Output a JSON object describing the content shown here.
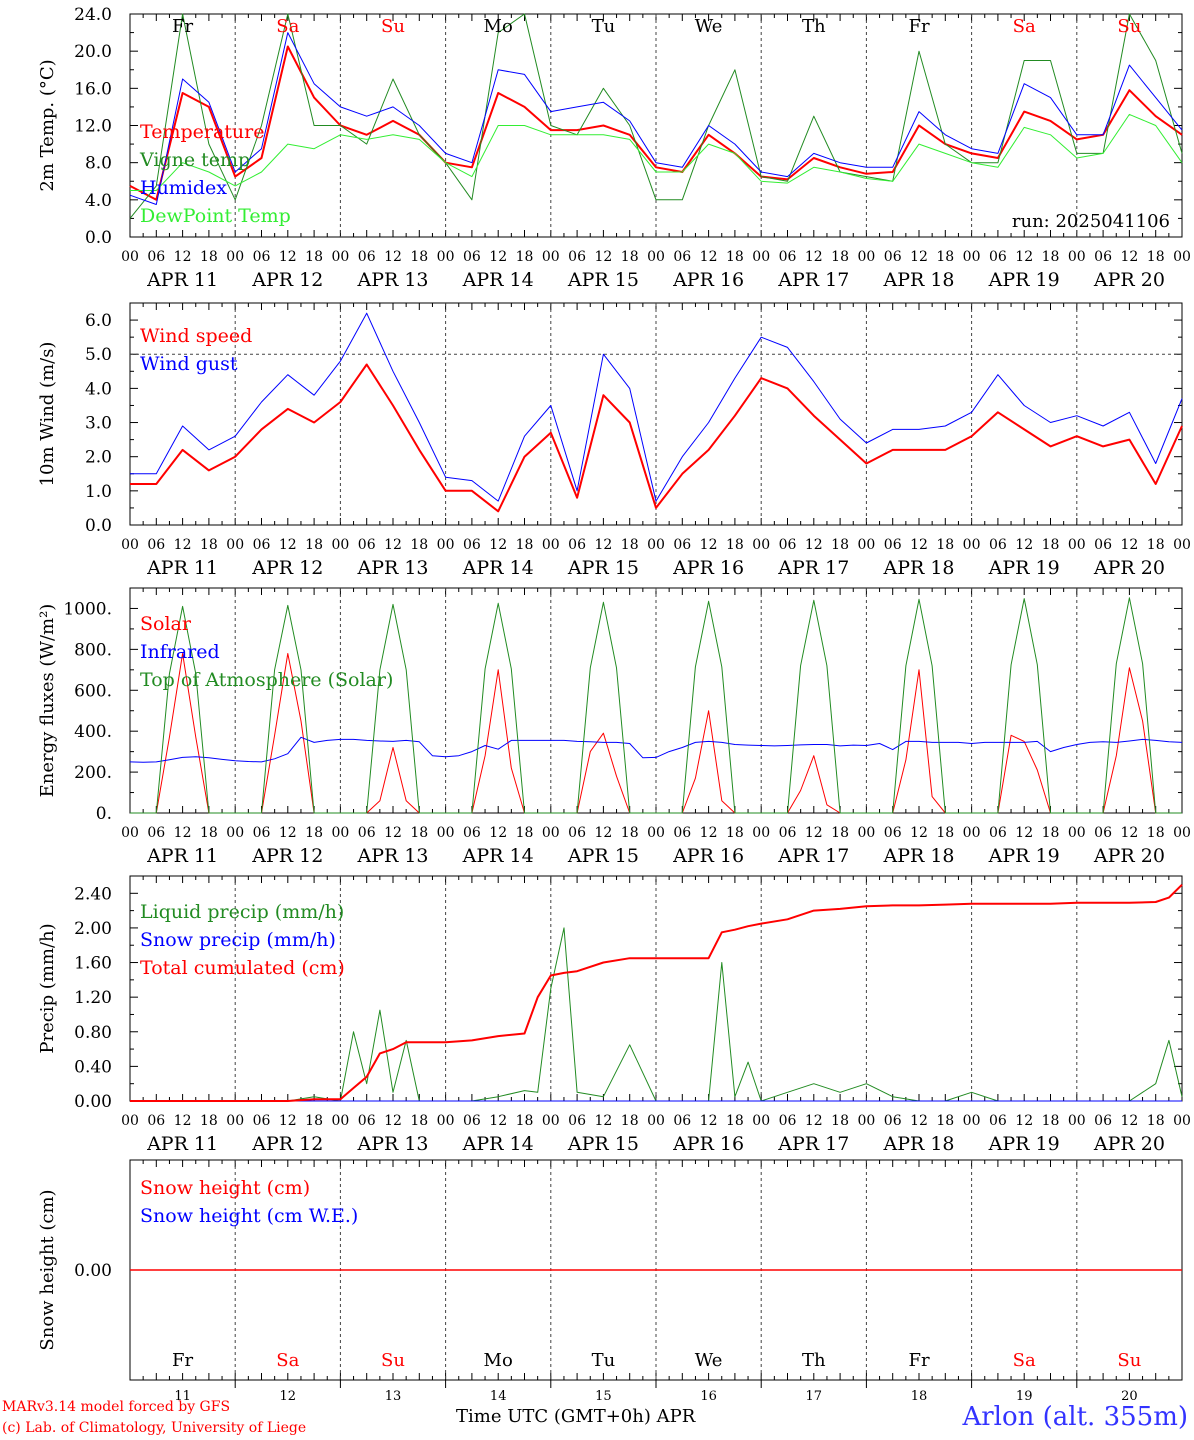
{
  "colors": {
    "red": "#ff0000",
    "dark_green": "#228b22",
    "blue": "#0000ff",
    "light_green": "#33ee33",
    "axis": "#000000",
    "weekend": "#ff0000",
    "location": "#3333ff"
  },
  "x_axis": {
    "hour_labels": [
      "00",
      "06",
      "12",
      "18"
    ],
    "date_labels": [
      "APR 11",
      "APR 12",
      "APR 13",
      "APR 14",
      "APR 15",
      "APR 16",
      "APR 17",
      "APR 18",
      "APR 19",
      "APR 20"
    ],
    "days": [
      {
        "abbr": "Fr",
        "num": "11",
        "weekend": false
      },
      {
        "abbr": "Sa",
        "num": "12",
        "weekend": true
      },
      {
        "abbr": "Su",
        "num": "13",
        "weekend": true
      },
      {
        "abbr": "Mo",
        "num": "14",
        "weekend": false
      },
      {
        "abbr": "Tu",
        "num": "15",
        "weekend": false
      },
      {
        "abbr": "We",
        "num": "16",
        "weekend": false
      },
      {
        "abbr": "Th",
        "num": "17",
        "weekend": false
      },
      {
        "abbr": "Fr",
        "num": "18",
        "weekend": false
      },
      {
        "abbr": "Sa",
        "num": "19",
        "weekend": true
      },
      {
        "abbr": "Su",
        "num": "20",
        "weekend": true
      }
    ],
    "range_hours": [
      0,
      240
    ]
  },
  "footer": {
    "model": "MARv3.14 model forced by GFS",
    "credit": "(c) Lab. of Climatology, University of Liege",
    "time_label": "Time UTC (GMT+0h) APR",
    "location": "Arlon (alt. 355m)"
  },
  "chart_data": [
    {
      "type": "line",
      "ylabel": "2m Temp. (°C)",
      "ylim": [
        0,
        24
      ],
      "yticks": [
        0,
        4,
        8,
        12,
        16,
        20,
        24
      ],
      "ytick_labels": [
        "0.0",
        "4.0",
        "8.0",
        "12.0",
        "16.0",
        "20.0",
        "24.0"
      ],
      "run_label": "run: 2025041106",
      "show_day_names": true,
      "x_hours": [
        0,
        6,
        12,
        18,
        24,
        30,
        36,
        42,
        48,
        54,
        60,
        66,
        72,
        78,
        84,
        90,
        96,
        102,
        108,
        114,
        120,
        126,
        132,
        138,
        144,
        150,
        156,
        162,
        168,
        174,
        180,
        186,
        192,
        198,
        204,
        210,
        216,
        222,
        228,
        234,
        240
      ],
      "series": [
        {
          "name": "Temperature",
          "color": "red",
          "width": 2,
          "values": [
            5.5,
            4,
            15.5,
            14,
            6.5,
            8.5,
            20.5,
            15,
            12,
            11,
            12.5,
            11,
            8,
            7.5,
            15.5,
            14,
            11.5,
            11.5,
            12,
            11,
            7.5,
            7,
            11,
            9,
            6.5,
            6.2,
            8.5,
            7.5,
            6.8,
            7,
            12,
            10,
            9,
            8.5,
            13.5,
            12.5,
            10.5,
            11,
            15.8,
            13,
            11
          ]
        },
        {
          "name": "Vigne temp",
          "color": "dark_green",
          "width": 1,
          "values": [
            2,
            5.5,
            24,
            10,
            4,
            12,
            24,
            12,
            12,
            10,
            17,
            11,
            8,
            4,
            22,
            24,
            12,
            11,
            16,
            12,
            4,
            4,
            12,
            18,
            6.5,
            6,
            13,
            7,
            6.5,
            6,
            20,
            10,
            8,
            8,
            19,
            19,
            9,
            9,
            24,
            19,
            9
          ]
        },
        {
          "name": "Humidex",
          "color": "blue",
          "width": 1,
          "values": [
            4.5,
            3.5,
            17,
            14.5,
            7,
            9.5,
            22,
            16.5,
            14,
            13,
            14,
            12,
            9,
            8,
            18,
            17.5,
            13.5,
            14,
            14.5,
            12.5,
            8,
            7.5,
            12,
            10,
            7,
            6.5,
            9,
            8,
            7.5,
            7.5,
            13.5,
            11,
            9.5,
            9,
            16.5,
            15,
            11,
            11,
            18.5,
            15,
            11.5
          ]
        },
        {
          "name": "DewPoint Temp",
          "color": "light_green",
          "width": 1,
          "values": [
            5,
            5,
            8,
            7,
            5.5,
            7,
            10,
            9.5,
            11,
            10.5,
            11,
            10.5,
            8,
            6.5,
            12,
            12,
            11,
            11,
            11,
            10.5,
            7,
            7,
            10,
            9,
            6,
            5.8,
            7.5,
            7,
            6.3,
            6,
            10,
            9,
            8,
            7.5,
            11.8,
            11,
            8.5,
            9,
            13.2,
            12,
            8
          ]
        }
      ]
    },
    {
      "type": "line",
      "ylabel": "10m Wind (m/s)",
      "ylim": [
        0,
        6.5
      ],
      "yticks": [
        0,
        1,
        2,
        3,
        4,
        5,
        6
      ],
      "ytick_labels": [
        "0.0",
        "1.0",
        "2.0",
        "3.0",
        "4.0",
        "5.0",
        "6.0"
      ],
      "ref_line": 5,
      "x_hours": [
        0,
        6,
        12,
        18,
        24,
        30,
        36,
        42,
        48,
        54,
        60,
        66,
        72,
        78,
        84,
        90,
        96,
        102,
        108,
        114,
        120,
        126,
        132,
        138,
        144,
        150,
        156,
        162,
        168,
        174,
        180,
        186,
        192,
        198,
        204,
        210,
        216,
        222,
        228,
        234,
        240
      ],
      "series": [
        {
          "name": "Wind speed",
          "color": "red",
          "width": 2,
          "values": [
            1.2,
            1.2,
            2.2,
            1.6,
            2.0,
            2.8,
            3.4,
            3.0,
            3.6,
            4.7,
            3.5,
            2.2,
            1.0,
            1.0,
            0.4,
            2.0,
            2.7,
            0.8,
            3.8,
            3.0,
            0.5,
            1.5,
            2.2,
            3.2,
            4.3,
            4.0,
            3.2,
            2.5,
            1.8,
            2.2,
            2.2,
            2.2,
            2.6,
            3.3,
            2.8,
            2.3,
            2.6,
            2.3,
            2.5,
            1.2,
            2.9
          ]
        },
        {
          "name": "Wind gust",
          "color": "blue",
          "width": 1,
          "values": [
            1.5,
            1.5,
            2.9,
            2.2,
            2.6,
            3.6,
            4.4,
            3.8,
            4.8,
            6.2,
            4.5,
            3.0,
            1.4,
            1.3,
            0.7,
            2.6,
            3.5,
            1.0,
            5.0,
            4.0,
            0.7,
            2.0,
            3.0,
            4.3,
            5.5,
            5.2,
            4.2,
            3.1,
            2.4,
            2.8,
            2.8,
            2.9,
            3.3,
            4.4,
            3.5,
            3.0,
            3.2,
            2.9,
            3.3,
            1.8,
            3.7
          ]
        }
      ]
    },
    {
      "type": "line",
      "ylabel": "Energy fluxes (W/m²)",
      "ylim": [
        0,
        1100
      ],
      "yticks": [
        0,
        200,
        400,
        600,
        800,
        1000
      ],
      "ytick_labels": [
        "0.",
        "200.",
        "400.",
        "600.",
        "800.",
        "1000."
      ],
      "x_hours": [
        0,
        3,
        6,
        9,
        12,
        15,
        18,
        21,
        24,
        27,
        30,
        33,
        36,
        39,
        42,
        45,
        48,
        51,
        54,
        57,
        60,
        63,
        66,
        69,
        72,
        75,
        78,
        81,
        84,
        87,
        90,
        93,
        96,
        99,
        102,
        105,
        108,
        111,
        114,
        117,
        120,
        123,
        126,
        129,
        132,
        135,
        138,
        141,
        144,
        147,
        150,
        153,
        156,
        159,
        162,
        165,
        168,
        171,
        174,
        177,
        180,
        183,
        186,
        189,
        192,
        195,
        198,
        201,
        204,
        207,
        210,
        213,
        216,
        219,
        222,
        225,
        228,
        231,
        234,
        237,
        240
      ],
      "series": [
        {
          "name": "Solar",
          "color": "red",
          "width": 1,
          "values": [
            0,
            0,
            0,
            370,
            780,
            370,
            0,
            0,
            0,
            0,
            0,
            380,
            780,
            450,
            0,
            0,
            0,
            0,
            0,
            60,
            320,
            60,
            0,
            0,
            0,
            0,
            0,
            280,
            700,
            220,
            0,
            0,
            0,
            0,
            0,
            300,
            390,
            180,
            0,
            0,
            0,
            0,
            0,
            170,
            500,
            60,
            0,
            0,
            0,
            0,
            0,
            110,
            280,
            40,
            0,
            0,
            0,
            0,
            0,
            260,
            700,
            80,
            0,
            0,
            0,
            0,
            0,
            380,
            350,
            210,
            0,
            0,
            0,
            0,
            0,
            280,
            710,
            450,
            0,
            0,
            0
          ]
        },
        {
          "name": "Infrared",
          "color": "blue",
          "width": 1,
          "values": [
            250,
            248,
            250,
            260,
            272,
            275,
            270,
            262,
            255,
            252,
            250,
            265,
            290,
            370,
            345,
            355,
            360,
            360,
            355,
            352,
            350,
            355,
            348,
            280,
            275,
            280,
            300,
            330,
            312,
            355,
            355,
            355,
            355,
            355,
            350,
            348,
            345,
            345,
            340,
            270,
            272,
            300,
            320,
            345,
            350,
            345,
            335,
            332,
            330,
            328,
            330,
            333,
            335,
            335,
            328,
            332,
            330,
            340,
            310,
            350,
            350,
            345,
            345,
            345,
            340,
            345,
            345,
            345,
            345,
            350,
            300,
            320,
            335,
            345,
            348,
            345,
            352,
            360,
            355,
            348,
            345
          ]
        },
        {
          "name": "Top of Atmosphere (Solar)",
          "color": "dark_green",
          "width": 1,
          "values": [
            0,
            0,
            0,
            680,
            1010,
            680,
            0,
            0,
            0,
            0,
            0,
            700,
            1015,
            700,
            0,
            0,
            0,
            0,
            0,
            700,
            1020,
            700,
            0,
            0,
            0,
            0,
            0,
            705,
            1025,
            705,
            0,
            0,
            0,
            0,
            0,
            710,
            1030,
            710,
            0,
            0,
            0,
            0,
            0,
            715,
            1035,
            715,
            0,
            0,
            0,
            0,
            0,
            720,
            1040,
            720,
            0,
            0,
            0,
            0,
            0,
            720,
            1045,
            720,
            0,
            0,
            0,
            0,
            0,
            725,
            1048,
            725,
            0,
            0,
            0,
            0,
            0,
            730,
            1052,
            730,
            0,
            0,
            0
          ]
        }
      ]
    },
    {
      "type": "line",
      "ylabel": "Precip (mm/h)",
      "ylim": [
        0,
        2.6
      ],
      "yticks": [
        0,
        0.4,
        0.8,
        1.2,
        1.6,
        2.0,
        2.4
      ],
      "ytick_labels": [
        "0.00",
        "0.40",
        "0.80",
        "1.20",
        "1.60",
        "2.00",
        "2.40"
      ],
      "x_hours": [
        0,
        6,
        12,
        18,
        24,
        30,
        36,
        42,
        48,
        51,
        54,
        57,
        60,
        63,
        66,
        72,
        78,
        84,
        90,
        93,
        96,
        99,
        102,
        108,
        114,
        120,
        126,
        132,
        135,
        138,
        141,
        144,
        150,
        156,
        162,
        168,
        174,
        180,
        186,
        192,
        198,
        204,
        210,
        216,
        222,
        228,
        234,
        237,
        240
      ],
      "series": [
        {
          "name": "Liquid precip (mm/h)",
          "color": "dark_green",
          "width": 1,
          "values": [
            0,
            0,
            0,
            0,
            0,
            0,
            0,
            0.05,
            0,
            0.8,
            0.2,
            1.05,
            0.1,
            0.7,
            0,
            0,
            0,
            0.05,
            0.12,
            0.1,
            1.3,
            2.0,
            0.1,
            0.05,
            0.65,
            0,
            0,
            0,
            1.6,
            0.05,
            0.45,
            0,
            0.1,
            0.2,
            0.1,
            0.2,
            0.05,
            0,
            0,
            0.1,
            0,
            0,
            0,
            0,
            0,
            0,
            0.2,
            0.7,
            0.05
          ]
        },
        {
          "name": "Snow precip (mm/h)",
          "color": "blue",
          "width": 1,
          "values": [
            0,
            0,
            0,
            0,
            0,
            0,
            0,
            0,
            0,
            0,
            0,
            0,
            0,
            0,
            0,
            0,
            0,
            0,
            0,
            0,
            0,
            0,
            0,
            0,
            0,
            0,
            0,
            0,
            0,
            0,
            0,
            0,
            0,
            0,
            0,
            0,
            0,
            0,
            0,
            0,
            0,
            0,
            0,
            0,
            0,
            0,
            0,
            0,
            0
          ]
        },
        {
          "name": "Total cumulated (cm)",
          "color": "red",
          "width": 2,
          "values": [
            0,
            0,
            0,
            0,
            0,
            0,
            0,
            0.02,
            0.02,
            0.15,
            0.28,
            0.55,
            0.6,
            0.68,
            0.68,
            0.68,
            0.7,
            0.75,
            0.78,
            1.2,
            1.45,
            1.48,
            1.5,
            1.6,
            1.65,
            1.65,
            1.65,
            1.65,
            1.95,
            1.98,
            2.02,
            2.05,
            2.1,
            2.2,
            2.22,
            2.25,
            2.26,
            2.26,
            2.27,
            2.28,
            2.28,
            2.28,
            2.28,
            2.29,
            2.29,
            2.29,
            2.3,
            2.35,
            2.5
          ]
        }
      ]
    },
    {
      "type": "line",
      "ylabel": "Snow height (cm)",
      "ylim": [
        -1,
        1
      ],
      "yticks": [
        0
      ],
      "ytick_labels": [
        "0.00"
      ],
      "x_hours": [
        0,
        240
      ],
      "bottom_days": true,
      "series": [
        {
          "name": "Snow height (cm)",
          "color": "red",
          "width": 1.5,
          "values": [
            0,
            0
          ]
        },
        {
          "name": "Snow height (cm W.E.)",
          "color": "blue",
          "width": 1,
          "values": [
            0,
            0
          ],
          "hidden_line": true
        }
      ]
    }
  ]
}
